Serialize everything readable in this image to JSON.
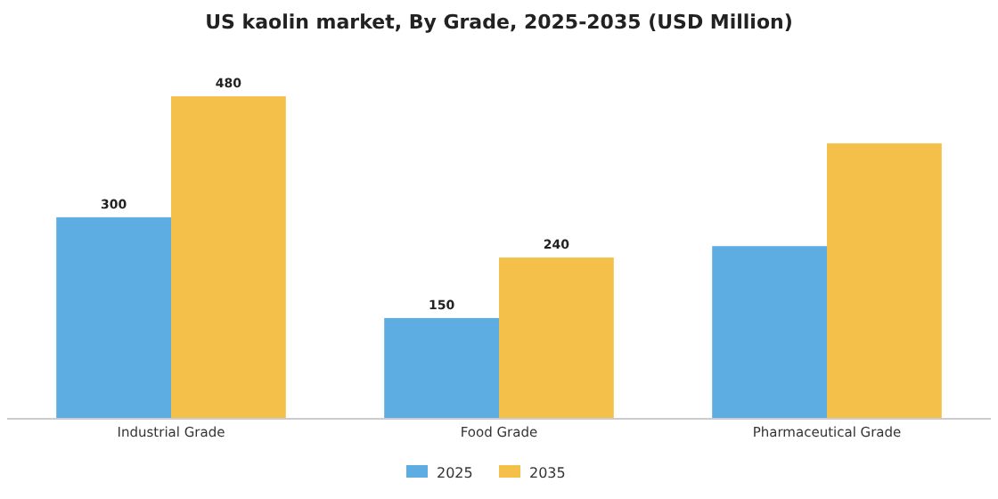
{
  "chart_data": {
    "type": "bar",
    "title": "US kaolin market, By Grade, 2025-2035 (USD Million)",
    "categories": [
      "Industrial Grade",
      "Food Grade",
      "Pharmaceutical Grade"
    ],
    "series": [
      {
        "name": "2025",
        "color": "#5dade2",
        "values": [
          300,
          150,
          257
        ],
        "value_labels": [
          "300",
          "150",
          null
        ]
      },
      {
        "name": "2035",
        "color": "#f5c04a",
        "values": [
          480,
          240,
          410
        ],
        "value_labels": [
          "480",
          "240",
          null
        ]
      }
    ],
    "legend": "bottom",
    "grid": false
  }
}
